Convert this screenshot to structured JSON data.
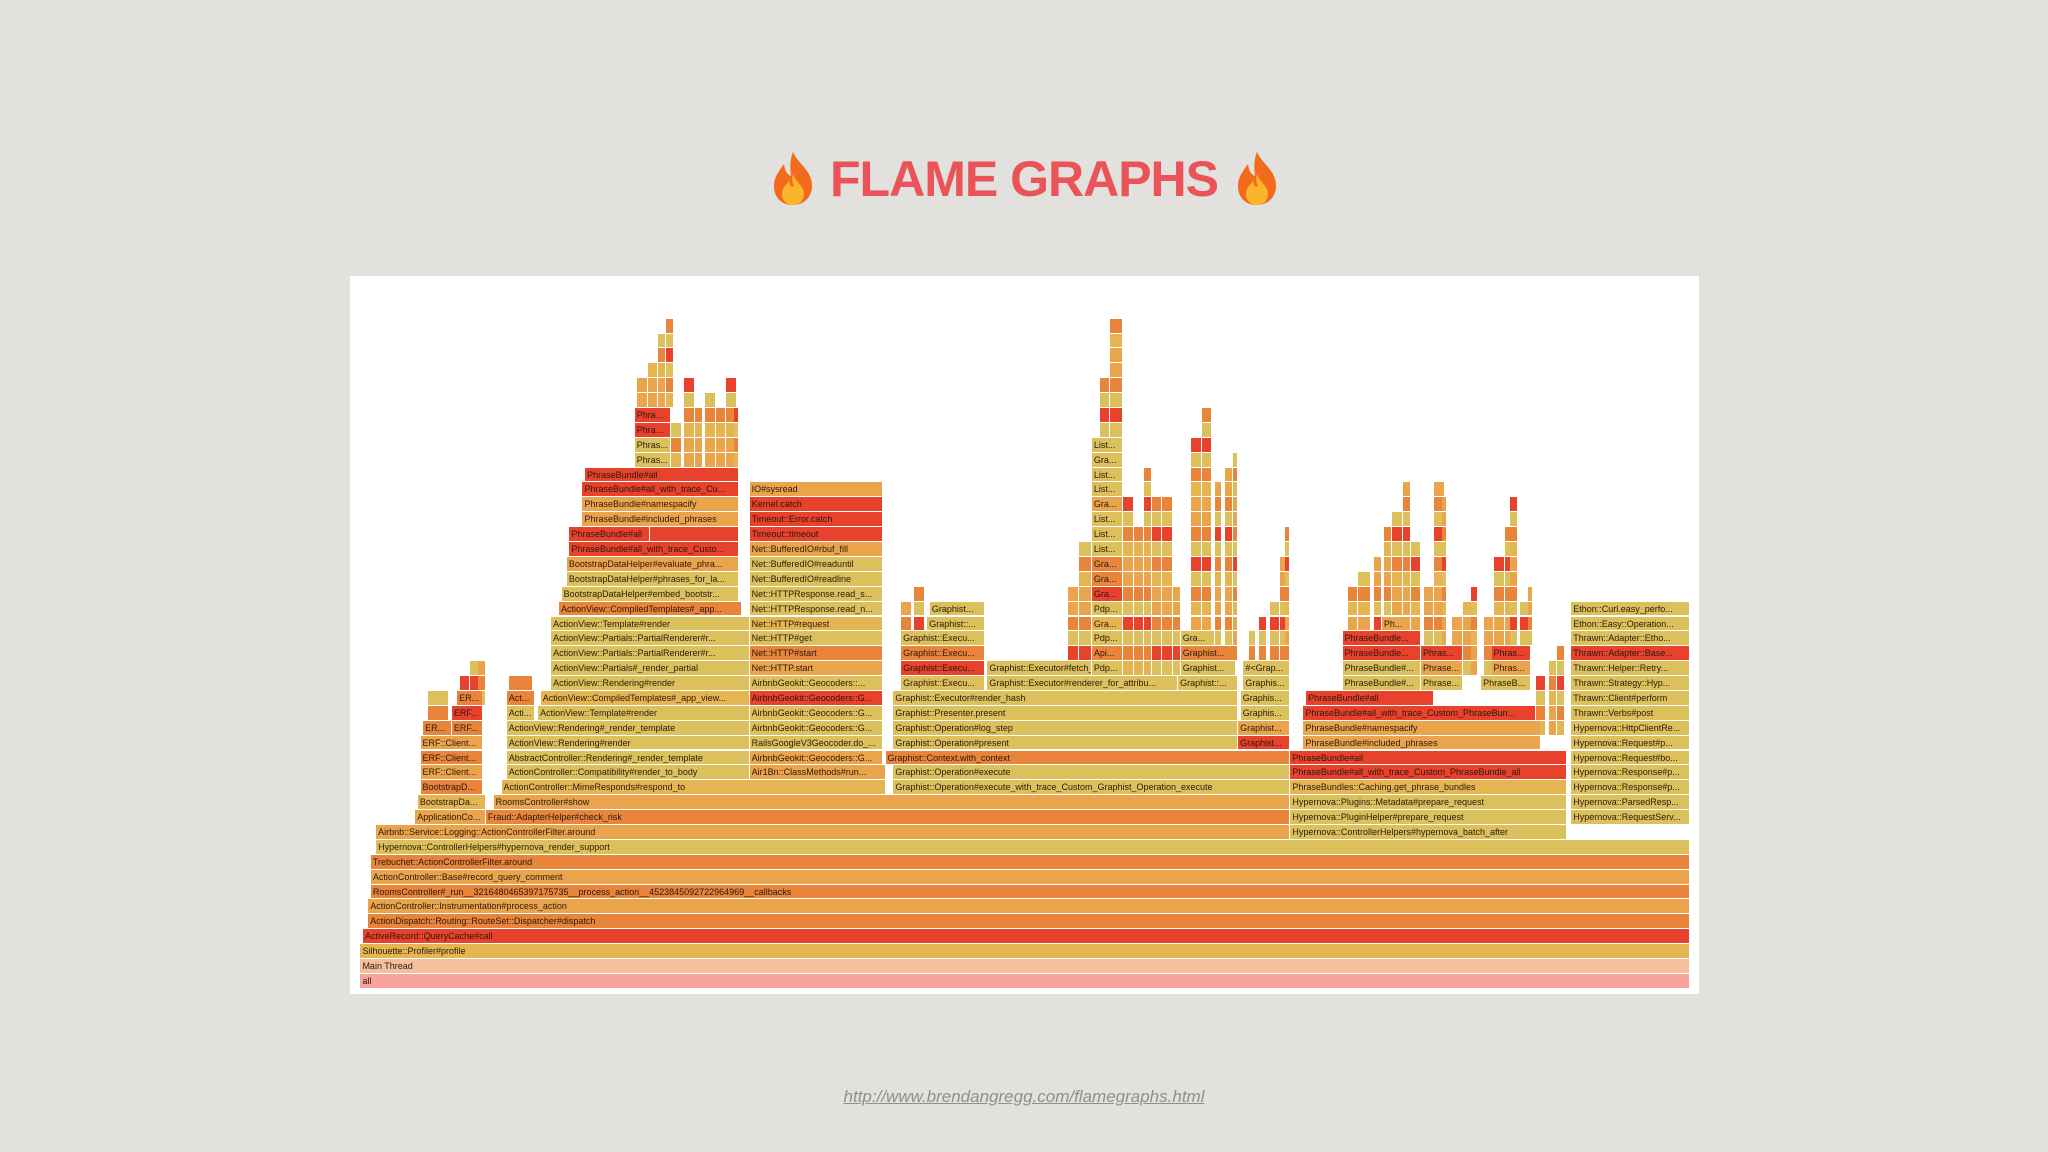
{
  "header": {
    "title": "FLAME GRAPHS"
  },
  "flame_graph": {
    "rows": [
      [
        "all"
      ],
      [
        "Main Thread"
      ],
      [
        "Silhouette::Profiler#profile"
      ],
      [
        "ActiveRecord::QueryCache#call"
      ],
      [
        "ActionDispatch::Routing::RouteSet::Dispatcher#dispatch"
      ],
      [
        "ActionController::Instrumentation#process_action"
      ],
      [
        "RoomsController#_run__3216480465397175735__process_action__4523845092722964969__callbacks"
      ],
      [
        "ActionController::Base#record_query_comment"
      ],
      [
        "Trebuchet::ActionControllerFilter.around"
      ],
      [
        "Hypernova::ControllerHelpers#hypernova_render_support"
      ],
      [
        "Airbnb::Service::Logging::ActionControllerFilter.around",
        "Hypernova::ControllerHelpers#hypernova_batch_after"
      ],
      [
        "ApplicationCo...",
        "Fraud::AdapterHelper#check_risk",
        "Hypernova::PluginHelper#prepare_request",
        "Hypernova::RequestServ..."
      ],
      [
        "BootstrapDa...",
        "RoomsController#show",
        "Hypernova::Plugins::Metadata#prepare_request",
        "Hypernova::ParsedResp..."
      ],
      [
        "BootstrapD...",
        "ActionController::MimeResponds#respond_to",
        "Graphist::Operation#execute_with_trace_Custom_Graphist_Operation_execute",
        "PhraseBundles::Caching.get_phrase_bundles",
        "Hypernova::Response#p..."
      ],
      [
        "ERF::Client...",
        "ActionController::Compatibility#render_to_body",
        "Air1Bn::ClassMethods#run...",
        "Graphist::Operation#execute",
        "PhraseBundle#all_with_trace_Custom_PhraseBundle_all",
        "Hypernova::Response#p..."
      ],
      [
        "ERF::Client...",
        "AbstractController::Rendering#_render_template",
        "AirbnbGeokit::Geocoders::G...",
        "Graphist::Context.with_context",
        "PhraseBundle#all",
        "Hypernova::Request#bo..."
      ],
      [
        "ERF::Client...",
        "ActionView::Rendering#render",
        "RailsGoogleV3Geocoder.do_...",
        "Graphist::Operation#present",
        "Graphist...",
        "PhraseBundle#included_phrases",
        "Hypernova::Request#p..."
      ],
      [
        "ER...",
        "ERF...",
        "ActionView::Rendering#_render_template",
        "AirbnbGeokit::Geocoders::G...",
        "Graphist::Operation#log_step",
        "Graphist...",
        "PhraseBundle#namespacify",
        "Hypernova::HttpClientRe..."
      ],
      [
        "ERF...",
        "Acti...",
        "ActionView::Template#render",
        "AirbnbGeokit::Geocoders::G...",
        "Graphist::Presenter.present",
        "Graphis...",
        "PhraseBundle#all_with_trace_Custom_PhraseBun...",
        "Thrawn::Verbs#post"
      ],
      [
        "ER...",
        "Act...",
        "ActionView::CompiledTemplates#_app_view...",
        "AirbnbGeokit::Geocoders::G...",
        "Graphist::Executor#render_hash",
        "Graphis...",
        "PhraseBundle#all",
        "Thrawn::Client#perform"
      ],
      [
        "ActionView::Rendering#render",
        "AirbnbGeokit::Geocoders::...",
        "Graphist::Execu...",
        "Graphist::Executor#renderer_for_attribu...",
        "Graphist::...",
        "Graphis...",
        "PhraseBundle#...",
        "Phrase...",
        "PhraseB...",
        "Thrawn::Strategy::Hyp..."
      ],
      [
        "ActionView::Partials#_render_partial",
        "Net::HTTP.start",
        "Graphist::Execu...",
        "Graphist::Executor#fetch_attribute",
        "Pdp...",
        "Graphist...",
        "#<Grap...",
        "PhraseBundle#...",
        "Phrase...",
        "Phras...",
        "Thrawn::Helper::Retry..."
      ],
      [
        "ActionView::Partials::PartialRenderer#r...",
        "Net::HTTP#start",
        "Graphist::Execu...",
        "Api...",
        "Graphist...",
        "PhraseBundle...",
        "Phras...",
        "Phras...",
        "Thrawn::Adapter::Base..."
      ],
      [
        "ActionView::Partials::PartialRenderer#r...",
        "Net::HTTP#get",
        "Graphist::Execu...",
        "Pdp...",
        "Gra...",
        "PhraseBundle...",
        "Thrawn::Adapter::Etho..."
      ],
      [
        "ActionView::Template#render",
        "Net::HTTP#request",
        "Graphist::...",
        "Gra...",
        "Ph...",
        "Ethon::Easy::Operation..."
      ],
      [
        "ActionView::CompiledTemplates#_app...",
        "Net::HTTPResponse.read_n...",
        "Graphist...",
        "Pdp...",
        "Ethon::Curl.easy_perfo..."
      ],
      [
        "BootstrapDataHelper#embed_bootstr...",
        "Net::HTTPResponse.read_s...",
        "Gra..."
      ],
      [
        "BootstrapDataHelper#phrases_for_la...",
        "Net::BufferedIO#readline",
        "Gra..."
      ],
      [
        "BootstrapDataHelper#evaluate_phra...",
        "Net::BufferedIO#readuntil",
        "Gra..."
      ],
      [
        "PhraseBundle#all_with_trace_Custo...",
        "Net::BufferedIO#rbuf_fill",
        "List..."
      ],
      [
        "PhraseBundle#all",
        "Timeout::timeout",
        "List..."
      ],
      [
        "PhraseBundle#included_phrases",
        "Timeout::Error.catch",
        "List..."
      ],
      [
        "PhraseBundle#namespacify",
        "Kernel.catch",
        "Gra..."
      ],
      [
        "PhraseBundle#all_with_trace_Cu...",
        "IO#sysread",
        "List..."
      ],
      [
        "PhraseBundle#all",
        "List..."
      ],
      [
        "Phras...",
        "Gra..."
      ],
      [
        "Phras...",
        "List..."
      ],
      [
        "Phra..."
      ],
      [
        "Phra..."
      ]
    ]
  },
  "footer": {
    "url": "http://www.brendangregg.com/flamegraphs.html"
  }
}
